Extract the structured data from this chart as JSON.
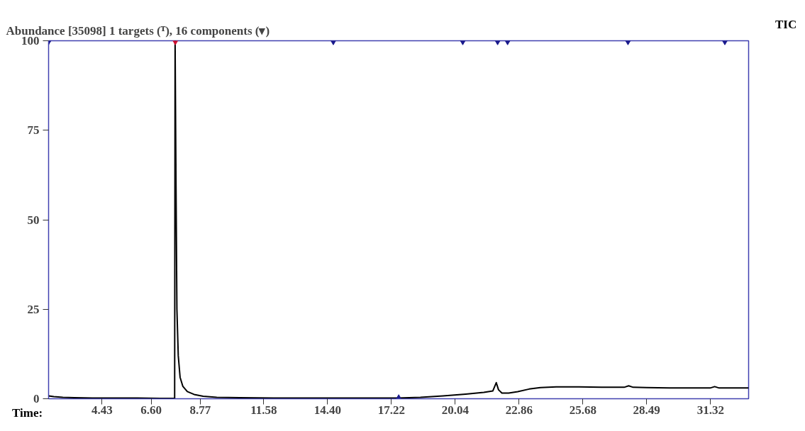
{
  "chart_data": {
    "type": "line",
    "title": "Abundance [35098] 1 targets (ᵀ), 16 components (▾)",
    "xlabel": "Time:",
    "annotations": [
      "TIC"
    ],
    "xlim": [
      2.07,
      33.0
    ],
    "ylim": [
      0,
      100
    ],
    "xticks": [
      4.43,
      {
        "value": 6.6,
        "label": "6.60"
      },
      8.77,
      11.58,
      {
        "value": 14.4,
        "label": "14.40"
      },
      17.22,
      20.04,
      22.86,
      25.68,
      28.49,
      31.32
    ],
    "yticks": [
      0,
      25,
      50,
      75,
      100
    ],
    "grid": false,
    "series": [
      {
        "color": "#000000",
        "x": [
          2.07,
          2.3,
          2.7,
          3.2,
          4.0,
          5.0,
          6.0,
          7.0,
          7.64,
          7.66,
          7.7,
          7.74,
          7.8,
          7.88,
          8.0,
          8.2,
          8.5,
          8.9,
          9.5,
          10.5,
          12,
          14,
          16,
          17.5,
          18.5,
          19.5,
          20.5,
          21.3,
          21.7,
          21.85,
          21.95,
          22.1,
          22.4,
          22.8,
          23.3,
          23.8,
          24.5,
          25.5,
          26.5,
          27.5,
          27.7,
          27.9,
          28.5,
          29.5,
          30.5,
          31.3,
          31.5,
          31.7,
          32.3,
          33.0
        ],
        "values": [
          0.8,
          0.6,
          0.4,
          0.3,
          0.2,
          0.2,
          0.2,
          0.1,
          0.1,
          100,
          60,
          25,
          12,
          6,
          3.5,
          2,
          1.2,
          0.7,
          0.4,
          0.3,
          0.2,
          0.2,
          0.2,
          0.2,
          0.4,
          0.8,
          1.3,
          1.8,
          2.2,
          4.5,
          2.5,
          1.6,
          1.6,
          2.0,
          2.7,
          3.1,
          3.3,
          3.3,
          3.2,
          3.2,
          3.6,
          3.2,
          3.1,
          3.0,
          3.0,
          3.0,
          3.4,
          3.0,
          3.0,
          3.0
        ]
      },
      {
        "type": "scatter",
        "marker": "triangle",
        "x": [
          2.07,
          7.67,
          14.65,
          20.37,
          21.91,
          22.35,
          27.67,
          31.95
        ],
        "values": [
          100,
          100,
          100,
          100,
          100,
          100,
          100,
          100
        ],
        "colors": [
          "#1a1a8c",
          "#d01030",
          "#1a1a8c",
          "#1a1a8c",
          "#1a1a8c",
          "#1a1a8c",
          "#1a1a8c",
          "#1a1a8c"
        ]
      },
      {
        "type": "scatter",
        "marker": "triangle",
        "x": [
          17.54
        ],
        "values": [
          0
        ],
        "color": "#1a1a8c"
      }
    ]
  }
}
